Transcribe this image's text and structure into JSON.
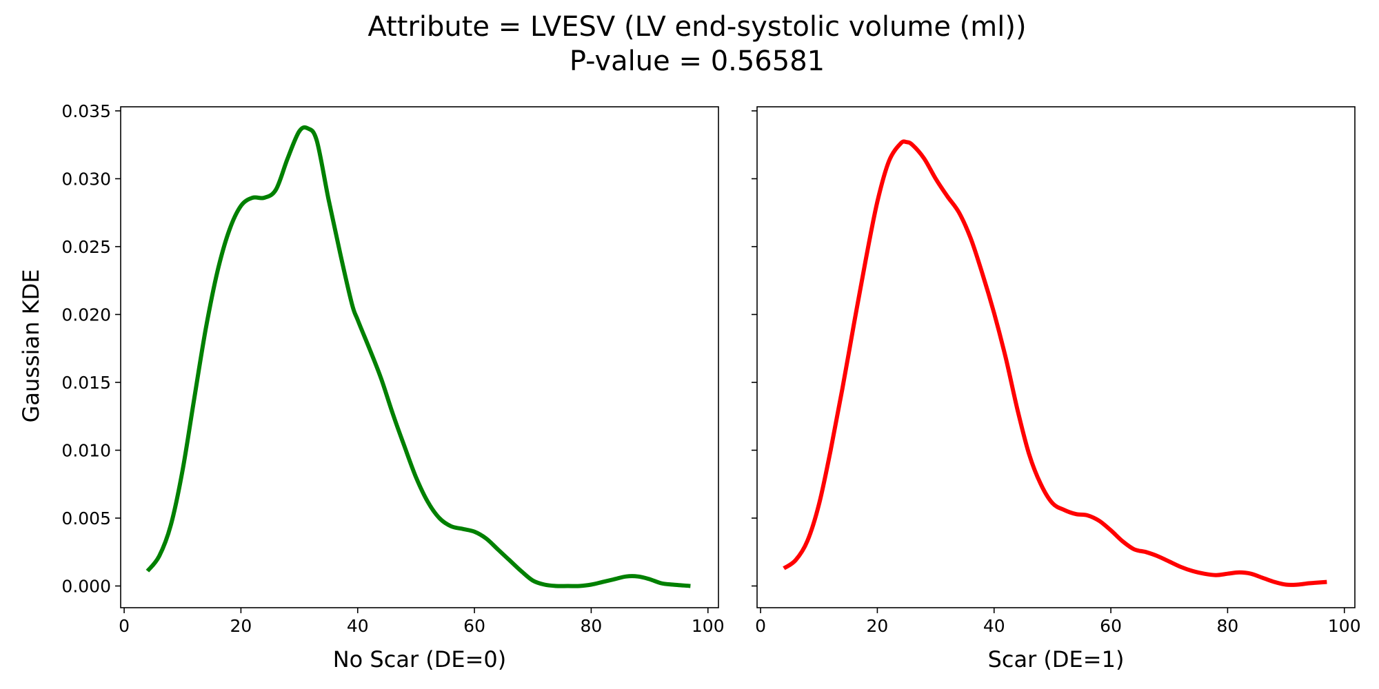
{
  "title": {
    "line1": "Attribute = LVESV (LV end-systolic volume (ml))",
    "line2": "P-value = 0.56581"
  },
  "chart_data": {
    "type": "line",
    "layout": "two panels side by side, shared y axis",
    "ylabel": "Gaussian KDE",
    "yticks": [
      "0.000",
      "0.005",
      "0.010",
      "0.015",
      "0.020",
      "0.025",
      "0.030",
      "0.035"
    ],
    "ytick_values": [
      0,
      0.005,
      0.01,
      0.015,
      0.02,
      0.025,
      0.03,
      0.035
    ],
    "ylim": [
      -0.0016,
      0.0353
    ],
    "grid": false,
    "panels": [
      {
        "xlabel": "No Scar (DE=0)",
        "xlim": [
          -0.6,
          101.8
        ],
        "xticks": [
          "0",
          "20",
          "40",
          "60",
          "80",
          "100"
        ],
        "xtick_values": [
          0,
          20,
          40,
          60,
          80,
          100
        ],
        "series": [
          {
            "color": "#008000",
            "x": [
              4,
              6,
              8,
              10,
              12,
              14,
              16,
              18,
              20,
              22,
              24,
              26,
              28,
              30,
              31.5,
              33,
              35,
              37,
              39,
              40,
              42,
              44,
              46,
              48,
              50,
              52,
              54,
              56,
              58,
              60,
              62,
              64,
              66,
              68,
              70,
              72,
              74,
              76,
              78,
              80,
              82,
              84,
              86,
              88,
              90,
              92,
              94,
              97
            ],
            "y": [
              0.0011,
              0.0022,
              0.0045,
              0.0085,
              0.0138,
              0.019,
              0.0232,
              0.0262,
              0.028,
              0.0286,
              0.0286,
              0.0292,
              0.0315,
              0.0335,
              0.0337,
              0.0328,
              0.0285,
              0.0245,
              0.0208,
              0.0196,
              0.0175,
              0.0153,
              0.0127,
              0.0103,
              0.008,
              0.0062,
              0.005,
              0.0044,
              0.0042,
              0.004,
              0.0035,
              0.0027,
              0.0019,
              0.0011,
              0.0004,
              0.0001,
              0.0,
              0.0,
              0.0,
              0.0001,
              0.0003,
              0.0005,
              0.0007,
              0.0007,
              0.0005,
              0.0002,
              0.0001,
              0.0
            ]
          }
        ]
      },
      {
        "xlabel": "Scar (DE=1)",
        "xlim": [
          -0.6,
          101.8
        ],
        "xticks": [
          "0",
          "20",
          "40",
          "60",
          "80",
          "100"
        ],
        "xtick_values": [
          0,
          20,
          40,
          60,
          80,
          100
        ],
        "series": [
          {
            "color": "#ff0000",
            "x": [
              4,
              6,
              8,
              10,
              12,
              14,
              16,
              18,
              20,
              22,
              24,
              25,
              26,
              28,
              30,
              32,
              34,
              36,
              38,
              40,
              42,
              44,
              46,
              48,
              50,
              52,
              54,
              56,
              58,
              60,
              62,
              64,
              66,
              68,
              70,
              72,
              74,
              76,
              78,
              80,
              82,
              84,
              86,
              88,
              90,
              92,
              94,
              97
            ],
            "y": [
              0.0013,
              0.0019,
              0.0033,
              0.006,
              0.01,
              0.0145,
              0.0193,
              0.024,
              0.0283,
              0.0313,
              0.0326,
              0.0327,
              0.0325,
              0.0315,
              0.03,
              0.0287,
              0.0275,
              0.0256,
              0.023,
              0.0201,
              0.0168,
              0.013,
              0.0097,
              0.0075,
              0.0061,
              0.0056,
              0.0053,
              0.0052,
              0.0048,
              0.0041,
              0.0033,
              0.0027,
              0.0025,
              0.0022,
              0.0018,
              0.0014,
              0.0011,
              0.0009,
              0.0008,
              0.0009,
              0.001,
              0.0009,
              0.0006,
              0.0003,
              0.0001,
              0.0001,
              0.0002,
              0.0003
            ]
          }
        ]
      }
    ]
  }
}
